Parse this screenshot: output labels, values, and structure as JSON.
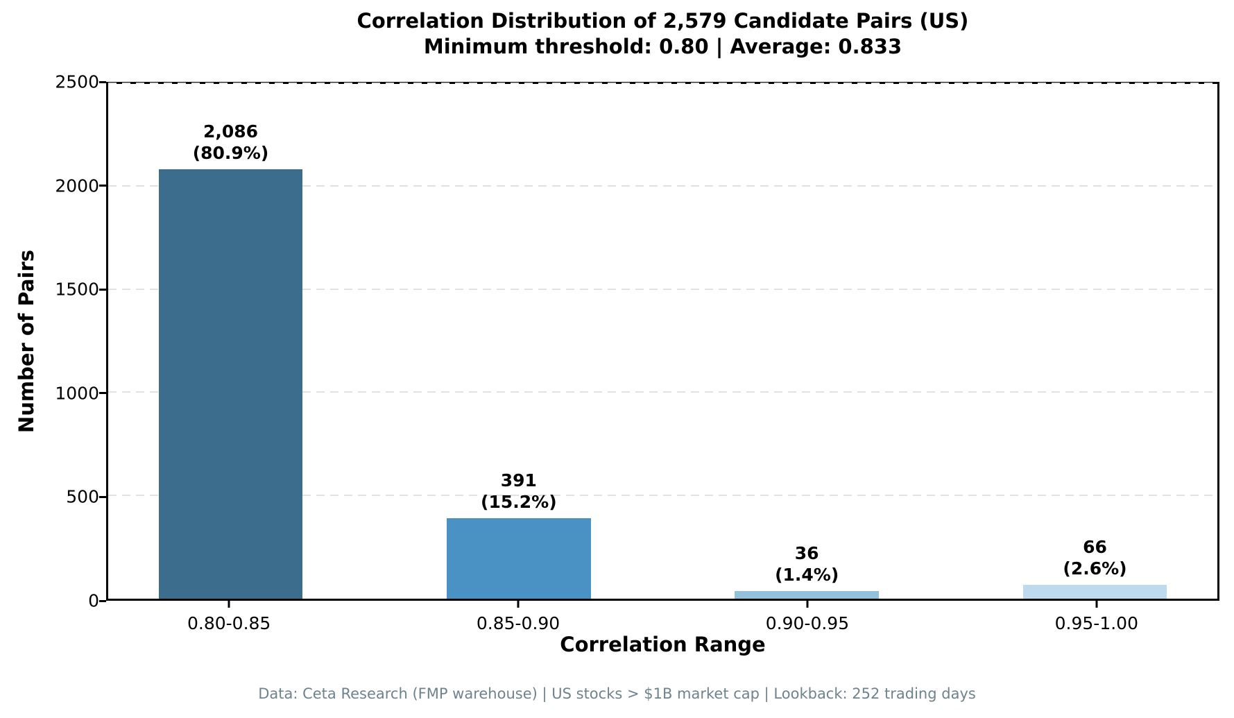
{
  "title": {
    "line1": "Correlation Distribution of 2,579 Candidate Pairs (US)",
    "line2": "Minimum threshold: 0.80 | Average: 0.833"
  },
  "footer": "Data: Ceta Research (FMP warehouse) | US stocks > $1B market cap | Lookback: 252 trading days",
  "chart_data": {
    "type": "bar",
    "title": "Correlation Distribution of 2,579 Candidate Pairs (US)",
    "subtitle": "Minimum threshold: 0.80 | Average: 0.833",
    "xlabel": "Correlation Range",
    "ylabel": "Number of Pairs",
    "categories": [
      "0.80-0.85",
      "0.85-0.90",
      "0.90-0.95",
      "0.95-1.00"
    ],
    "values": [
      2086,
      391,
      36,
      66
    ],
    "bar_labels": [
      {
        "count": "2,086",
        "pct": "(80.9%)"
      },
      {
        "count": "391",
        "pct": "(15.2%)"
      },
      {
        "count": "36",
        "pct": "(1.4%)"
      },
      {
        "count": "66",
        "pct": "(2.6%)"
      }
    ],
    "bar_colors": [
      "#3d6d8d",
      "#4a91c4",
      "#93c0dd",
      "#bedaef"
    ],
    "ylim": [
      0,
      2500
    ],
    "yticks": [
      0,
      500,
      1000,
      1500,
      2000,
      2500
    ],
    "xlim": [
      -0.425,
      3.425
    ],
    "bar_width_units": 0.5,
    "grid": "horizontal-dashed",
    "legend": "none",
    "annotation": "Data: Ceta Research (FMP warehouse) | US stocks > $1B market cap | Lookback: 252 trading days"
  },
  "colors": {
    "background": "#ffffff",
    "spine": "#000000",
    "gridline": "#e1e1e1",
    "footer_text": "#6e838c"
  }
}
